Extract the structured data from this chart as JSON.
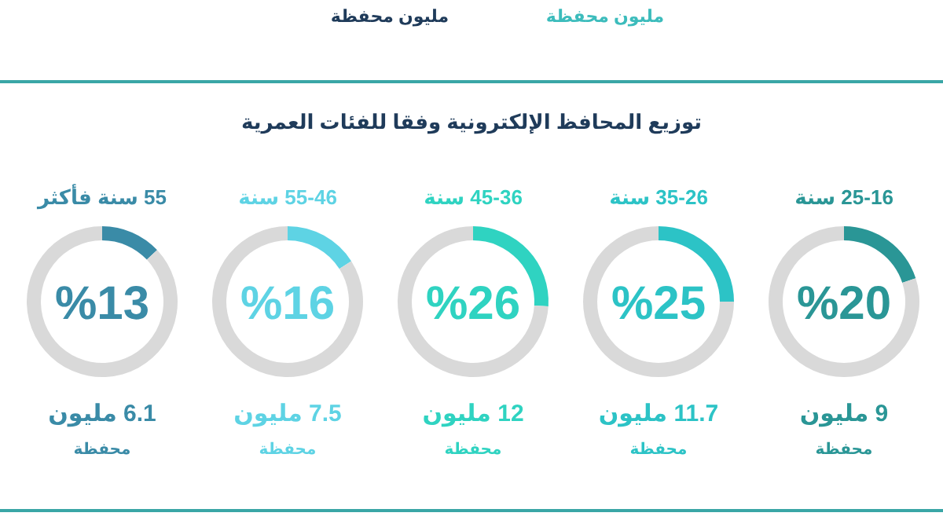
{
  "chart_data": [
    {
      "type": "other",
      "title": "توزيع المحافظ الإلكترونية وفقا للفئات العمرية",
      "annotations": [
        "مليون محفظة",
        "مليون محفظة"
      ]
    },
    {
      "type": "donut",
      "title": "25-16 سنة",
      "categories": [
        null,
        null
      ],
      "values": [
        20,
        80
      ],
      "colors": [
        "#2a9696",
        "#d9d9d9"
      ],
      "annotations": [
        "%20",
        "9 مليون",
        "محفظة"
      ]
    },
    {
      "type": "donut",
      "title": "35-26 سنة",
      "categories": [
        null,
        null
      ],
      "values": [
        25,
        75
      ],
      "colors": [
        "#2cc3c6",
        "#d9d9d9"
      ],
      "annotations": [
        "%25",
        "11.7 مليون",
        "محفظة"
      ]
    },
    {
      "type": "donut",
      "title": "45-36 سنة",
      "categories": [
        null,
        null
      ],
      "values": [
        26,
        74
      ],
      "colors": [
        "#2fd3c1",
        "#d9d9d9"
      ],
      "annotations": [
        "%26",
        "12 مليون",
        "محفظة"
      ]
    },
    {
      "type": "donut",
      "title": "55-46 سنة",
      "categories": [
        null,
        null
      ],
      "values": [
        16,
        84
      ],
      "colors": [
        "#5ed3e4",
        "#d9d9d9"
      ],
      "annotations": [
        "%16",
        "7.5 مليون",
        "محفظة"
      ]
    },
    {
      "type": "donut",
      "title": "55 سنة فأكثر",
      "categories": [
        null,
        null
      ],
      "values": [
        13,
        87
      ],
      "colors": [
        "#3a8ba7",
        "#d9d9d9"
      ],
      "annotations": [
        "%13",
        "6.1 مليون",
        "محفظة"
      ]
    }
  ]
}
